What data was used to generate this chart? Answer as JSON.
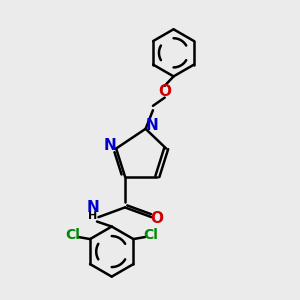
{
  "bg_color": "#ebebeb",
  "bond_color": "#000000",
  "nitrogen_color": "#0000cc",
  "oxygen_color": "#cc0000",
  "chlorine_color": "#008800",
  "line_width": 1.8,
  "fig_size": [
    3.0,
    3.0
  ],
  "dpi": 100,
  "xlim": [
    0,
    10
  ],
  "ylim": [
    0,
    10
  ]
}
